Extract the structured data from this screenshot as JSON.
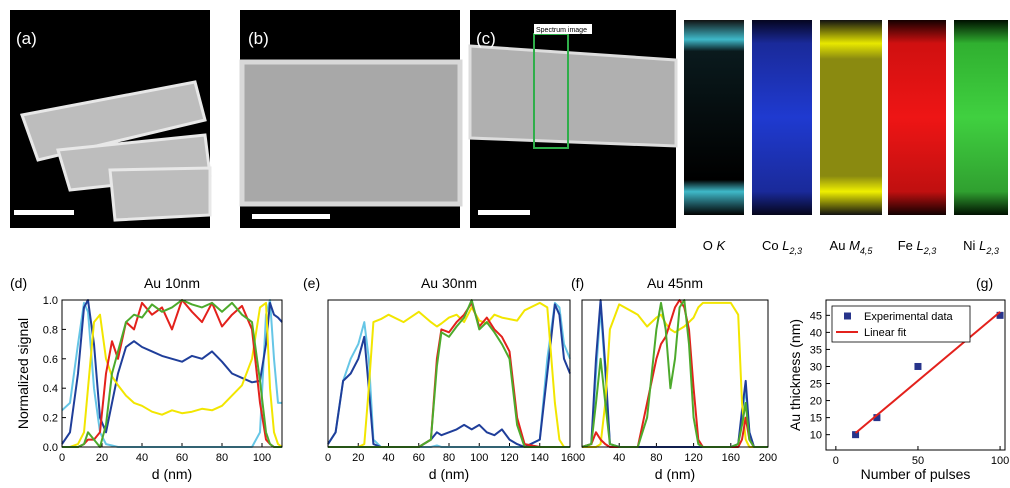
{
  "figure": {
    "image_labels": [
      "(a)",
      "(b)",
      "(c)"
    ],
    "roi_label": "Spectrum image",
    "maps": [
      {
        "element": "O",
        "edge": "K"
      },
      {
        "element": "Co",
        "edge": "L",
        "sub": "2,3"
      },
      {
        "element": "Au",
        "edge": "M",
        "sub": "4,5"
      },
      {
        "element": "Fe",
        "edge": "L",
        "sub": "2,3"
      },
      {
        "element": "Ni",
        "edge": "L",
        "sub": "2,3"
      }
    ]
  },
  "chart_data": [
    {
      "type": "line",
      "panel": "(d)",
      "title": "Au 10nm",
      "xlabel": "d (nm)",
      "ylabel": "Normalized signal",
      "xlim": [
        0,
        110
      ],
      "xticks": [
        0,
        20,
        40,
        60,
        80,
        100
      ],
      "ylim": [
        0,
        1.0
      ],
      "yticks": [
        {
          "value": 0,
          "label": "0.0"
        },
        {
          "value": 0.2,
          "label": "0.2"
        },
        {
          "value": 0.4,
          "label": "0.4"
        },
        {
          "value": 0.6,
          "label": "0.6"
        },
        {
          "value": 0.8,
          "label": "0.8"
        },
        {
          "value": 1.0,
          "label": "1.0"
        }
      ],
      "x": [
        0,
        4,
        8,
        11,
        13,
        16,
        19,
        22,
        25,
        28,
        32,
        36,
        40,
        45,
        50,
        55,
        60,
        65,
        70,
        75,
        80,
        85,
        90,
        95,
        99,
        102,
        104,
        106,
        108,
        110
      ],
      "series": [
        {
          "color": "#66c6e6",
          "values": [
            0.25,
            0.3,
            0.7,
            0.98,
            0.92,
            0.4,
            0.1,
            0.02,
            0.01,
            0,
            0,
            0,
            0,
            0,
            0,
            0,
            0,
            0,
            0,
            0,
            0,
            0,
            0,
            0,
            0.1,
            0.9,
            1.0,
            0.6,
            0.3,
            0.3
          ]
        },
        {
          "color": "#1f3e9a",
          "values": [
            0.02,
            0.1,
            0.5,
            0.95,
            1.0,
            0.7,
            0.2,
            0.1,
            0.3,
            0.5,
            0.68,
            0.72,
            0.68,
            0.65,
            0.62,
            0.6,
            0.58,
            0.62,
            0.6,
            0.65,
            0.58,
            0.5,
            0.47,
            0.44,
            0.45,
            0.7,
            0.98,
            0.9,
            0.88,
            0.85
          ]
        },
        {
          "color": "#f2e600",
          "values": [
            0,
            0,
            0.02,
            0.1,
            0.4,
            0.85,
            0.9,
            0.6,
            0.48,
            0.42,
            0.35,
            0.3,
            0.28,
            0.24,
            0.22,
            0.25,
            0.23,
            0.24,
            0.26,
            0.25,
            0.28,
            0.35,
            0.42,
            0.6,
            0.95,
            0.98,
            0.4,
            0.1,
            0.02,
            0
          ]
        },
        {
          "color": "#e3211c",
          "values": [
            0,
            0,
            0,
            0.02,
            0.05,
            0.05,
            0.1,
            0.5,
            0.72,
            0.6,
            0.85,
            0.8,
            0.98,
            0.9,
            0.95,
            0.8,
            1.0,
            0.92,
            0.85,
            0.98,
            0.82,
            0.9,
            0.96,
            0.8,
            0.3,
            0.05,
            0.02,
            0,
            0,
            0
          ]
        },
        {
          "color": "#4daa2c",
          "values": [
            0,
            0,
            0,
            0.02,
            0.1,
            0.05,
            0,
            0.15,
            0.5,
            0.65,
            0.85,
            0.9,
            0.88,
            0.97,
            0.92,
            0.95,
            1.0,
            0.97,
            0.95,
            0.98,
            0.92,
            0.98,
            0.9,
            0.85,
            0.45,
            0.1,
            0.02,
            0,
            0,
            0
          ]
        }
      ]
    },
    {
      "type": "line",
      "panel": "(e)",
      "title": "Au 30nm",
      "xlabel": "d (nm)",
      "xlim": [
        0,
        160
      ],
      "xticks": [
        0,
        20,
        40,
        60,
        80,
        100,
        120,
        140,
        160
      ],
      "ylim": [
        0,
        1.0
      ],
      "x": [
        0,
        5,
        10,
        15,
        20,
        24,
        27,
        30,
        35,
        40,
        50,
        60,
        68,
        72,
        75,
        80,
        85,
        90,
        95,
        100,
        105,
        110,
        115,
        120,
        125,
        130,
        140,
        145,
        150,
        153,
        156,
        160
      ],
      "series": [
        {
          "color": "#66c6e6",
          "values": [
            0.02,
            0.1,
            0.45,
            0.6,
            0.7,
            0.85,
            0.6,
            0.05,
            0,
            0,
            0,
            0,
            0,
            0.01,
            0,
            0,
            0,
            0,
            0,
            0,
            0,
            0,
            0,
            0,
            0,
            0,
            0.05,
            0.6,
            0.98,
            0.95,
            0.7,
            0.6
          ]
        },
        {
          "color": "#1f3e9a",
          "values": [
            0.02,
            0.1,
            0.45,
            0.5,
            0.6,
            0.75,
            0.4,
            0.02,
            0,
            0,
            0,
            0,
            0.05,
            0.1,
            0.08,
            0.1,
            0.12,
            0.15,
            0.12,
            0.15,
            0.1,
            0.08,
            0.12,
            0.05,
            0.02,
            0,
            0.05,
            0.5,
            0.97,
            0.9,
            0.6,
            0.5
          ]
        },
        {
          "color": "#f2e600",
          "values": [
            0,
            0,
            0,
            0,
            0,
            0.02,
            0.4,
            0.85,
            0.87,
            0.9,
            0.85,
            0.92,
            0.85,
            0.82,
            0.84,
            0.88,
            0.9,
            0.85,
            0.95,
            0.86,
            0.84,
            0.9,
            0.88,
            0.87,
            0.86,
            0.93,
            0.98,
            0.95,
            0.3,
            0.05,
            0,
            0
          ]
        },
        {
          "color": "#e3211c",
          "values": [
            0,
            0,
            0,
            0,
            0,
            0,
            0,
            0,
            0,
            0,
            0,
            0,
            0.05,
            0.6,
            0.8,
            0.78,
            0.85,
            0.9,
            0.98,
            0.82,
            0.88,
            0.8,
            0.75,
            0.65,
            0.2,
            0.02,
            0,
            0,
            0,
            0,
            0,
            0
          ]
        },
        {
          "color": "#4daa2c",
          "values": [
            0,
            0,
            0,
            0,
            0,
            0,
            0,
            0,
            0,
            0,
            0,
            0,
            0.05,
            0.55,
            0.78,
            0.75,
            0.82,
            0.88,
            1.0,
            0.8,
            0.85,
            0.78,
            0.7,
            0.6,
            0.15,
            0,
            0,
            0,
            0,
            0,
            0,
            0
          ]
        }
      ]
    },
    {
      "type": "line",
      "panel": "(f)",
      "title": "Au 45nm",
      "xlabel": "d (nm)",
      "xlim": [
        0,
        200
      ],
      "xticks": [
        0,
        40,
        80,
        120,
        160,
        200
      ],
      "ylim": [
        0,
        1.0
      ],
      "x": [
        0,
        10,
        15,
        20,
        25,
        30,
        40,
        60,
        70,
        80,
        85,
        90,
        95,
        100,
        105,
        110,
        115,
        120,
        125,
        130,
        140,
        160,
        168,
        172,
        176,
        180,
        185,
        190,
        200
      ],
      "series": [
        {
          "color": "#66c6e6",
          "values": [
            0,
            0.02,
            0.5,
            0.95,
            0.5,
            0.02,
            0,
            0,
            0,
            0,
            0,
            0,
            0,
            0,
            0,
            0,
            0,
            0,
            0,
            0,
            0,
            0,
            0.02,
            0.2,
            0.4,
            0.1,
            0,
            0,
            0
          ]
        },
        {
          "color": "#1f3e9a",
          "values": [
            0,
            0.02,
            0.6,
            1.0,
            0.55,
            0.02,
            0,
            0,
            0,
            0,
            0,
            0,
            0,
            0,
            0,
            0,
            0,
            0,
            0,
            0,
            0,
            0,
            0.02,
            0.25,
            0.45,
            0.1,
            0,
            0,
            0
          ]
        },
        {
          "color": "#f2e600",
          "values": [
            0,
            0,
            0,
            0.02,
            0.3,
            0.8,
            0.97,
            0.9,
            0.82,
            0.88,
            0.9,
            0.84,
            0.8,
            0.78,
            0.8,
            0.82,
            0.85,
            0.88,
            0.95,
            0.98,
            0.98,
            0.98,
            0.9,
            0.3,
            0.05,
            0,
            0,
            0,
            0
          ]
        },
        {
          "color": "#e3211c",
          "values": [
            0,
            0.02,
            0.1,
            0.05,
            0.02,
            0,
            0,
            0,
            0.3,
            0.6,
            0.7,
            0.75,
            0.85,
            0.95,
            1.0,
            0.95,
            0.8,
            0.4,
            0.05,
            0,
            0,
            0,
            0,
            0.05,
            0.2,
            0.05,
            0,
            0,
            0
          ]
        },
        {
          "color": "#4daa2c",
          "values": [
            0,
            0.02,
            0.3,
            0.6,
            0.3,
            0.02,
            0,
            0,
            0.2,
            0.8,
            0.98,
            0.8,
            0.4,
            0.6,
            0.95,
            1.0,
            0.7,
            0.2,
            0.02,
            0,
            0,
            0,
            0.02,
            0.15,
            0.3,
            0.05,
            0,
            0,
            0
          ]
        }
      ]
    },
    {
      "type": "scatter",
      "panel": "(g)",
      "xlabel": "Number of pulses",
      "ylabel": "Au thickness (nm)",
      "xlim": [
        -6,
        103
      ],
      "xticks": [
        0,
        50,
        100
      ],
      "ylim": [
        5.5,
        49.5
      ],
      "yticks": [
        10,
        15,
        20,
        25,
        30,
        35,
        40,
        45
      ],
      "legend": "upper left",
      "series": [
        {
          "name": "Experimental data",
          "style": "marker",
          "color": "#27348b",
          "x": [
            12,
            25,
            50,
            100
          ],
          "values": [
            10,
            15,
            30,
            45
          ]
        },
        {
          "name": "Linear fit",
          "style": "line",
          "color": "#e3211c",
          "x": [
            12,
            100
          ],
          "values": [
            10.5,
            46
          ]
        }
      ]
    }
  ]
}
